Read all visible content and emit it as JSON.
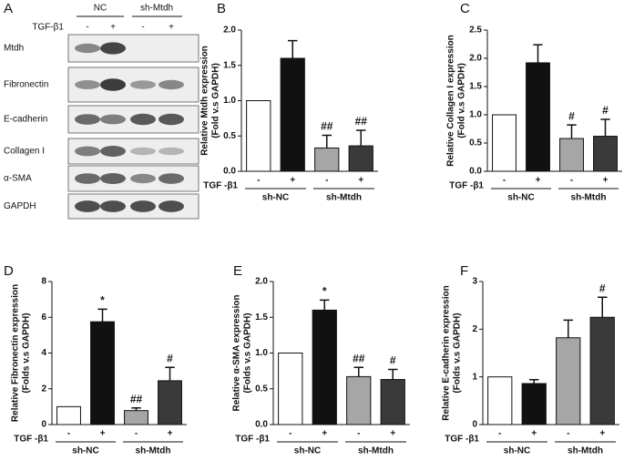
{
  "blot": {
    "panel": "A",
    "treatment_label": "TGF-β1",
    "groups": [
      "NC",
      "sh-Mtdh"
    ],
    "lanes": [
      "-",
      "+",
      "-",
      "+"
    ],
    "rows": [
      "Mtdh",
      "Fibronectin",
      "E-cadherin",
      "Collagen I",
      "α-SMA",
      "GAPDH"
    ]
  },
  "chart_data": [
    {
      "type": "bar",
      "panel": "B",
      "ylabel": [
        "Relative Mtdh expression",
        "(Fold v.s GAPDH)"
      ],
      "row_label": "TGF -β1",
      "categories": [
        "-",
        "+",
        "-",
        "+"
      ],
      "groups": [
        "sh-NC",
        "sh-Mtdh"
      ],
      "values": [
        1.0,
        1.6,
        0.33,
        0.36
      ],
      "errors": [
        null,
        0.25,
        0.18,
        0.22
      ],
      "annotations": [
        null,
        null,
        "##",
        "##"
      ],
      "colors": [
        "#ffffff",
        "#111111",
        "#a6a6a6",
        "#3a3a3a"
      ],
      "ylim": [
        0,
        2
      ],
      "yticks": [
        {
          "value": 0,
          "label": "0.0"
        },
        0.5,
        {
          "value": 1,
          "label": "1.0"
        },
        1.5,
        {
          "value": 2,
          "label": "2.0"
        }
      ]
    },
    {
      "type": "bar",
      "panel": "C",
      "ylabel": [
        "Relative Collagen I expression",
        "(Fold v.s GAPDH)"
      ],
      "row_label": "TGF -β1",
      "categories": [
        "-",
        "+",
        "-",
        "+"
      ],
      "groups": [
        "sh-NC",
        "sh-Mtdh"
      ],
      "values": [
        1.0,
        1.92,
        0.58,
        0.62
      ],
      "errors": [
        null,
        0.32,
        0.24,
        0.3
      ],
      "annotations": [
        null,
        null,
        "#",
        "#"
      ],
      "colors": [
        "#ffffff",
        "#111111",
        "#a6a6a6",
        "#3a3a3a"
      ],
      "ylim": [
        0,
        2.5
      ],
      "yticks": [
        {
          "value": 0,
          "label": "0.0"
        },
        0.5,
        {
          "value": 1,
          "label": "1.0"
        },
        1.5,
        {
          "value": 2,
          "label": "2.0"
        },
        2.5
      ]
    },
    {
      "type": "bar",
      "panel": "D",
      "ylabel": [
        "Relative Fibronectin expression",
        "(Folds v.s GAPDH)"
      ],
      "row_label": "TGF -β1",
      "categories": [
        "-",
        "+",
        "-",
        "+"
      ],
      "groups": [
        "sh-NC",
        "sh-Mtdh"
      ],
      "values": [
        1.0,
        5.75,
        0.78,
        2.45
      ],
      "errors": [
        null,
        0.7,
        0.15,
        0.75
      ],
      "annotations": [
        null,
        "*",
        "##",
        "#"
      ],
      "colors": [
        "#ffffff",
        "#111111",
        "#a6a6a6",
        "#3a3a3a"
      ],
      "ylim": [
        0,
        8
      ],
      "yticks": [
        0,
        2,
        4,
        6,
        8
      ]
    },
    {
      "type": "bar",
      "panel": "E",
      "ylabel": [
        "Relative α-SMA expression",
        "(Folds v.s GAPDH)"
      ],
      "row_label": "TGF -β1",
      "categories": [
        "-",
        "+",
        "-",
        "+"
      ],
      "groups": [
        "sh-NC",
        "sh-Mtdh"
      ],
      "values": [
        1.0,
        1.6,
        0.67,
        0.63
      ],
      "errors": [
        null,
        0.14,
        0.13,
        0.14
      ],
      "annotations": [
        null,
        "*",
        "##",
        "#"
      ],
      "colors": [
        "#ffffff",
        "#111111",
        "#a6a6a6",
        "#3a3a3a"
      ],
      "ylim": [
        0,
        2
      ],
      "yticks": [
        {
          "value": 0,
          "label": "0.0"
        },
        0.5,
        {
          "value": 1,
          "label": "1.0"
        },
        1.5,
        {
          "value": 2,
          "label": "2.0"
        }
      ]
    },
    {
      "type": "bar",
      "panel": "F",
      "ylabel": [
        "Relative E-cadherin expression",
        "(Folds v.s GAPDH)"
      ],
      "row_label": "TGF -β1",
      "categories": [
        "-",
        "+",
        "-",
        "+"
      ],
      "groups": [
        "sh-NC",
        "sh-Mtdh"
      ],
      "values": [
        1.0,
        0.86,
        1.82,
        2.25
      ],
      "errors": [
        null,
        0.08,
        0.37,
        0.42
      ],
      "annotations": [
        null,
        null,
        null,
        "#"
      ],
      "colors": [
        "#ffffff",
        "#111111",
        "#a6a6a6",
        "#3a3a3a"
      ],
      "ylim": [
        0,
        3
      ],
      "yticks": [
        0,
        1,
        2,
        3
      ]
    }
  ]
}
